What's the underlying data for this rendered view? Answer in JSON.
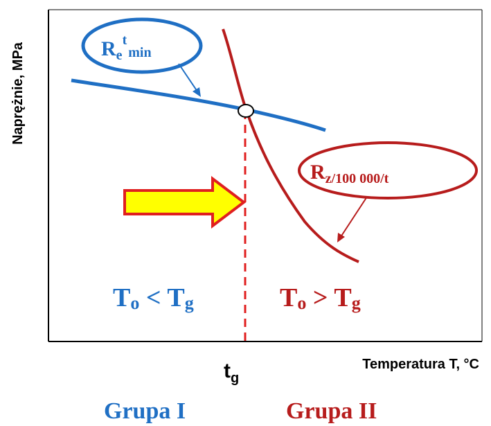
{
  "y_axis_label": "Naprężnie, MPa",
  "x_axis_label": "Temperatura T, °C",
  "tg_label": {
    "base": "t",
    "sub": "g"
  },
  "re_label": {
    "base": "R",
    "sub": "e",
    "sup": "t",
    "sub2": "min"
  },
  "rz_label": {
    "base": "R",
    "sub": "z/100 000/t"
  },
  "left_region": {
    "base": "T",
    "sub": "o",
    "op": " < ",
    "base2": "T",
    "sub2": "g"
  },
  "right_region": {
    "base": "T",
    "sub": "o",
    "op": " > ",
    "base2": "T",
    "sub2": "g"
  },
  "group_1": "Grupa I",
  "group_2": "Grupa II",
  "colors": {
    "blue": "#1F6FC4",
    "red": "#B71C1C",
    "arrow_fill": "#FFFF00",
    "arrow_stroke": "#E01F1F",
    "axis": "#000000"
  }
}
